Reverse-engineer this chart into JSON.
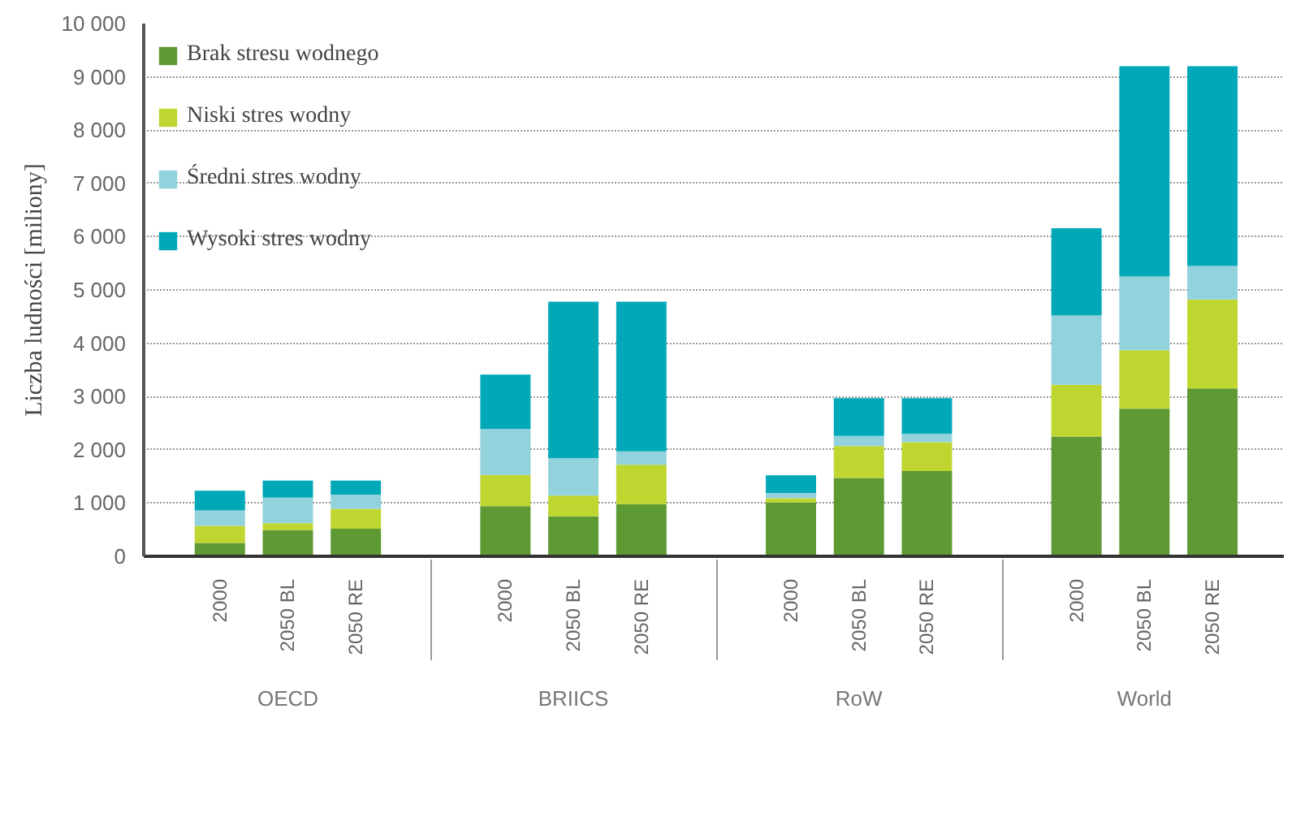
{
  "chart_data": {
    "type": "bar",
    "stacked": true,
    "ylabel": "Liczba ludności [miliony]",
    "categories": [
      "2000",
      "2050 BL",
      "2050 RE",
      "2000",
      "2050 BL",
      "2050 RE",
      "2000",
      "2050 BL",
      "2050 RE",
      "2000",
      "2050 BL",
      "2050 RE"
    ],
    "annotations": [
      "OECD",
      "BRIICS",
      "RoW",
      "World"
    ],
    "series": [
      {
        "name": "Brak stresu wodnego",
        "color": "#5e9a33",
        "values": [
          250,
          490,
          520,
          940,
          750,
          980,
          1010,
          1470,
          1600,
          2250,
          2770,
          3150
        ]
      },
      {
        "name": "Niski stres wodny",
        "color": "#bfd630",
        "values": [
          320,
          130,
          370,
          590,
          390,
          740,
          80,
          600,
          540,
          970,
          1100,
          1670
        ]
      },
      {
        "name": "Średni stres wodny",
        "color": "#92d2dc",
        "values": [
          290,
          480,
          270,
          860,
          700,
          250,
          100,
          190,
          160,
          1300,
          1380,
          630
        ]
      },
      {
        "name": "Wysoki stres wodny",
        "color": "#00a8b8",
        "values": [
          370,
          320,
          260,
          1020,
          2940,
          2810,
          330,
          710,
          670,
          1640,
          3950,
          3750
        ]
      }
    ],
    "ylim": [
      0,
      10000
    ],
    "yticks": [
      0,
      {
        "value": 1000,
        "label": "1 000"
      },
      {
        "value": 2000,
        "label": "2 000"
      },
      {
        "value": 3000,
        "label": "3 000"
      },
      {
        "value": 4000,
        "label": "4 000"
      },
      {
        "value": 5000,
        "label": "5 000"
      },
      {
        "value": 6000,
        "label": "6 000"
      },
      {
        "value": 7000,
        "label": "7 000"
      },
      {
        "value": 8000,
        "label": "8 000"
      },
      {
        "value": 9000,
        "label": "9 000"
      },
      {
        "value": 10000,
        "label": "10 000"
      }
    ],
    "grid": "y",
    "legend": "top left"
  }
}
